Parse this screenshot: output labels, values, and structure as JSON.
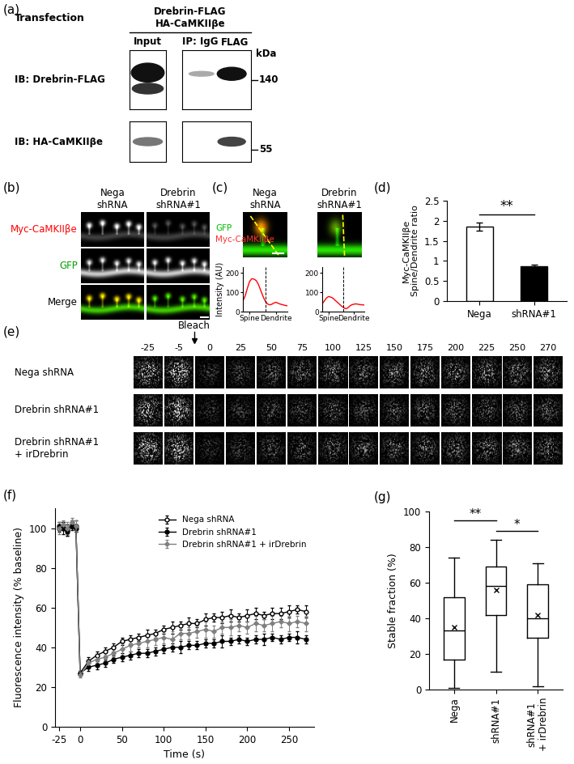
{
  "panel_labels": [
    "(a)",
    "(b)",
    "(c)",
    "(d)",
    "(e)",
    "(f)",
    "(g)"
  ],
  "blot": {
    "transfection_label": "Transfection",
    "constructs": [
      "Drebrin-FLAG",
      "HA-CaMKIIβe"
    ],
    "lanes": [
      "Input",
      "IP: IgG",
      "FLAG"
    ],
    "kda_label": "kDa",
    "rows": [
      {
        "label": "IB: Drebrin-FLAG",
        "marker": 140
      },
      {
        "label": "IB: HA-CaMKIIβe",
        "marker": 55
      }
    ]
  },
  "images_b": {
    "columns": [
      "Nega\nshRNA",
      "Drebrin\nshRNA#1"
    ],
    "rows": [
      "Myc-CaMKIIβe",
      "GFP",
      "Merge"
    ]
  },
  "images_c": {
    "columns": [
      "Nega\nshRNA",
      "Drebrin\nshRNA#1"
    ],
    "channels": [
      "GFP",
      "Myc-CaMKIIβe"
    ]
  },
  "frap_images": {
    "bleach_label": "Bleach",
    "times": [
      -25,
      -5,
      0,
      25,
      50,
      75,
      100,
      125,
      150,
      175,
      200,
      225,
      250,
      270
    ],
    "rows": [
      "Nega shRNA",
      "Drebrin shRNA#1",
      "Drebrin shRNA#1\n+ irDrebrin"
    ]
  },
  "chart_data": [
    {
      "type": "line",
      "ylabel": "Intensity (AU)",
      "x": [
        0,
        1,
        2,
        3,
        4,
        5,
        6,
        7,
        8,
        9,
        10,
        11,
        12,
        13,
        14,
        15,
        16,
        17,
        18,
        19,
        20
      ],
      "values": [
        55,
        80,
        120,
        155,
        170,
        168,
        160,
        140,
        110,
        80,
        55,
        40,
        35,
        38,
        45,
        48,
        42,
        38,
        35,
        32,
        30
      ],
      "color": "#ff0000",
      "xlim": [
        0,
        20
      ],
      "ylim": [
        0,
        230
      ],
      "yticks": [
        0,
        100,
        200
      ],
      "xticks": [
        {
          "value": 3,
          "label": "Spine"
        },
        {
          "value": 15,
          "label": "Dendrite"
        }
      ],
      "divider": 10
    },
    {
      "type": "line",
      "x": [
        0,
        1,
        2,
        3,
        4,
        5,
        6,
        7,
        8,
        9,
        10,
        11,
        12,
        13,
        14,
        15,
        16,
        17,
        18,
        19,
        20
      ],
      "values": [
        40,
        55,
        70,
        78,
        75,
        70,
        60,
        50,
        40,
        30,
        22,
        15,
        18,
        28,
        35,
        38,
        40,
        38,
        36,
        35,
        34
      ],
      "color": "#ff0000",
      "xlim": [
        0,
        20
      ],
      "ylim": [
        0,
        230
      ],
      "yticks": [
        0,
        100,
        200
      ],
      "xticks": [
        {
          "value": 3,
          "label": "Spine"
        },
        {
          "value": 15,
          "label": "Dendrite"
        }
      ],
      "divider": 10
    },
    {
      "type": "bar",
      "ylabel": "Myc-CaMKIIβe\nSpine/Dendrite ratio",
      "categories": [
        "Nega",
        "shRNA#1"
      ],
      "values": [
        1.85,
        0.87
      ],
      "errors": [
        0.1,
        0.03
      ],
      "colors": [
        "#ffffff",
        "#000000"
      ],
      "ylim": [
        0,
        2.5
      ],
      "yticks": [
        0,
        0.5,
        1,
        1.5,
        2,
        2.5
      ],
      "significance": [
        {
          "pair": [
            0,
            1
          ],
          "label": "**"
        }
      ]
    },
    {
      "type": "line",
      "xlabel": "Time (s)",
      "ylabel": "Fluorescence intensity (% baseline)",
      "x": [
        -25,
        -20,
        -15,
        -10,
        -5,
        0,
        10,
        20,
        30,
        40,
        50,
        60,
        70,
        80,
        90,
        100,
        110,
        120,
        130,
        140,
        150,
        160,
        170,
        180,
        190,
        200,
        210,
        220,
        230,
        240,
        250,
        260,
        270
      ],
      "series": [
        {
          "name": "Nega shRNA",
          "color": "#000000",
          "marker": "circle_open",
          "line_style": "solid",
          "values": [
            100,
            101,
            99,
            102,
            101,
            27,
            33,
            36,
            38,
            40,
            43,
            44,
            45,
            46,
            47,
            49,
            50,
            51,
            52,
            52,
            54,
            55,
            55,
            56,
            55,
            56,
            57,
            56,
            57,
            57,
            58,
            59,
            58
          ],
          "errors": [
            2,
            2,
            3,
            2,
            3,
            1,
            2,
            2,
            2,
            2,
            2,
            2,
            2,
            3,
            2,
            2,
            3,
            2,
            3,
            2,
            3,
            2,
            3,
            3,
            2,
            3,
            3,
            2,
            3,
            3,
            3,
            2,
            3
          ]
        },
        {
          "name": "Drebrin shRNA#1",
          "color": "#000000",
          "marker": "circle",
          "line_style": "solid",
          "values": [
            101,
            100,
            98,
            101,
            100,
            27,
            30,
            31,
            32,
            34,
            35,
            36,
            37,
            37,
            38,
            39,
            40,
            40,
            41,
            41,
            42,
            42,
            43,
            43,
            44,
            43,
            44,
            44,
            45,
            44,
            45,
            45,
            44
          ],
          "errors": [
            2,
            3,
            2,
            2,
            2,
            1,
            2,
            2,
            2,
            2,
            2,
            2,
            2,
            2,
            2,
            2,
            2,
            3,
            2,
            2,
            2,
            2,
            3,
            2,
            2,
            2,
            2,
            3,
            2,
            2,
            2,
            3,
            2
          ]
        },
        {
          "name": "Drebrin shRNA#1 + irDrebrin",
          "color": "#808080",
          "marker": "diamond",
          "line_style": "solid",
          "values": [
            100,
            102,
            100,
            103,
            101,
            26,
            32,
            34,
            35,
            37,
            39,
            41,
            42,
            43,
            44,
            45,
            44,
            47,
            47,
            48,
            49,
            48,
            50,
            50,
            51,
            50,
            52,
            51,
            52,
            53,
            52,
            53,
            52
          ],
          "errors": [
            3,
            2,
            3,
            2,
            3,
            1,
            2,
            2,
            3,
            2,
            3,
            3,
            2,
            3,
            3,
            3,
            4,
            3,
            3,
            3,
            4,
            3,
            3,
            4,
            3,
            3,
            4,
            3,
            4,
            3,
            4,
            3,
            4
          ]
        }
      ],
      "xlim": [
        -30,
        280
      ],
      "ylim": [
        0,
        110
      ],
      "xticks": [
        -25,
        0,
        50,
        100,
        150,
        200,
        250
      ],
      "yticks": [
        0,
        20,
        40,
        60,
        80,
        100
      ],
      "legend": "upper right"
    },
    {
      "type": "box",
      "ylabel": "Stable fraction (%)",
      "categories": [
        "Nega",
        "shRNA#1",
        "shRNA#1\n+ irDrebrin"
      ],
      "min": [
        1,
        10,
        2
      ],
      "q1": [
        17,
        42,
        29
      ],
      "median": [
        33,
        58,
        40
      ],
      "q3": [
        52,
        69,
        59
      ],
      "max": [
        74,
        84,
        71
      ],
      "mean": [
        35,
        56,
        42
      ],
      "ylim": [
        0,
        100
      ],
      "yticks": [
        0,
        20,
        40,
        60,
        80,
        100
      ],
      "significance": [
        {
          "pair": [
            0,
            1
          ],
          "label": "**"
        },
        {
          "pair": [
            1,
            2
          ],
          "label": "*"
        }
      ]
    }
  ]
}
